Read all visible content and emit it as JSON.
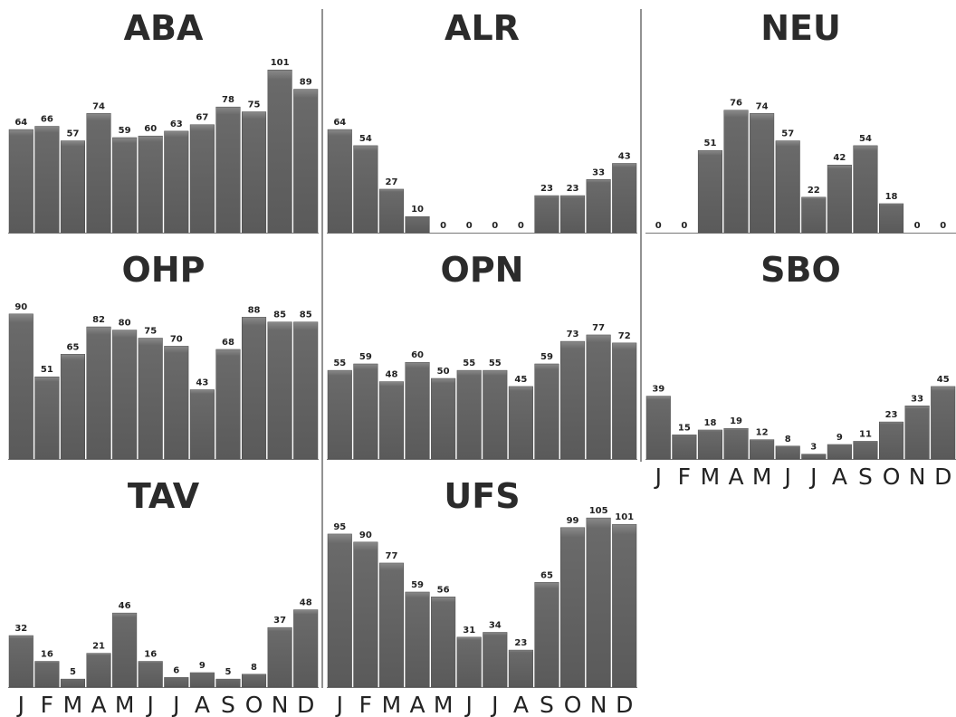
{
  "chart_data": [
    {
      "type": "bar",
      "title": "ABA",
      "categories": [
        "J",
        "F",
        "M",
        "A",
        "M",
        "J",
        "J",
        "A",
        "S",
        "O",
        "N",
        "D"
      ],
      "values": [
        64,
        66,
        57,
        74,
        59,
        60,
        63,
        67,
        78,
        75,
        101,
        89
      ],
      "show_x_ticks": false
    },
    {
      "type": "bar",
      "title": "ALR",
      "categories": [
        "J",
        "F",
        "M",
        "A",
        "M",
        "J",
        "J",
        "A",
        "S",
        "O",
        "N",
        "D"
      ],
      "values": [
        64,
        54,
        27,
        10,
        0,
        0,
        0,
        0,
        23,
        23,
        33,
        43
      ],
      "show_x_ticks": false
    },
    {
      "type": "bar",
      "title": "NEU",
      "categories": [
        "J",
        "F",
        "M",
        "A",
        "M",
        "J",
        "J",
        "A",
        "S",
        "O",
        "N",
        "D"
      ],
      "values": [
        0,
        0,
        51,
        76,
        74,
        57,
        22,
        42,
        54,
        18,
        0,
        0
      ],
      "show_x_ticks": false
    },
    {
      "type": "bar",
      "title": "OHP",
      "categories": [
        "J",
        "F",
        "M",
        "A",
        "M",
        "J",
        "J",
        "A",
        "S",
        "O",
        "N",
        "D"
      ],
      "values": [
        90,
        51,
        65,
        82,
        80,
        75,
        70,
        43,
        68,
        88,
        85,
        85
      ],
      "show_x_ticks": false
    },
    {
      "type": "bar",
      "title": "OPN",
      "categories": [
        "J",
        "F",
        "M",
        "A",
        "M",
        "J",
        "J",
        "A",
        "S",
        "O",
        "N",
        "D"
      ],
      "values": [
        55,
        59,
        48,
        60,
        50,
        55,
        55,
        45,
        59,
        73,
        77,
        72
      ],
      "show_x_ticks": false
    },
    {
      "type": "bar",
      "title": "SBO",
      "categories": [
        "J",
        "F",
        "M",
        "A",
        "M",
        "J",
        "J",
        "A",
        "S",
        "O",
        "N",
        "D"
      ],
      "values": [
        39,
        15,
        18,
        19,
        12,
        8,
        3,
        9,
        11,
        23,
        33,
        45
      ],
      "show_x_ticks": true
    },
    {
      "type": "bar",
      "title": "TAV",
      "categories": [
        "J",
        "F",
        "M",
        "A",
        "M",
        "J",
        "J",
        "A",
        "S",
        "O",
        "N",
        "D"
      ],
      "values": [
        32,
        16,
        5,
        21,
        46,
        16,
        6,
        9,
        5,
        8,
        37,
        48
      ],
      "show_x_ticks": true
    },
    {
      "type": "bar",
      "title": "UFS",
      "categories": [
        "J",
        "F",
        "M",
        "A",
        "M",
        "J",
        "J",
        "A",
        "S",
        "O",
        "N",
        "D"
      ],
      "values": [
        95,
        90,
        77,
        59,
        56,
        31,
        34,
        23,
        65,
        99,
        105,
        101
      ],
      "show_x_ticks": true
    }
  ],
  "colors": {
    "bar_fill": "#5a5a5a",
    "bar_top": "#8a8a8a",
    "divider": "#6e6e6e",
    "axis": "#777777"
  }
}
